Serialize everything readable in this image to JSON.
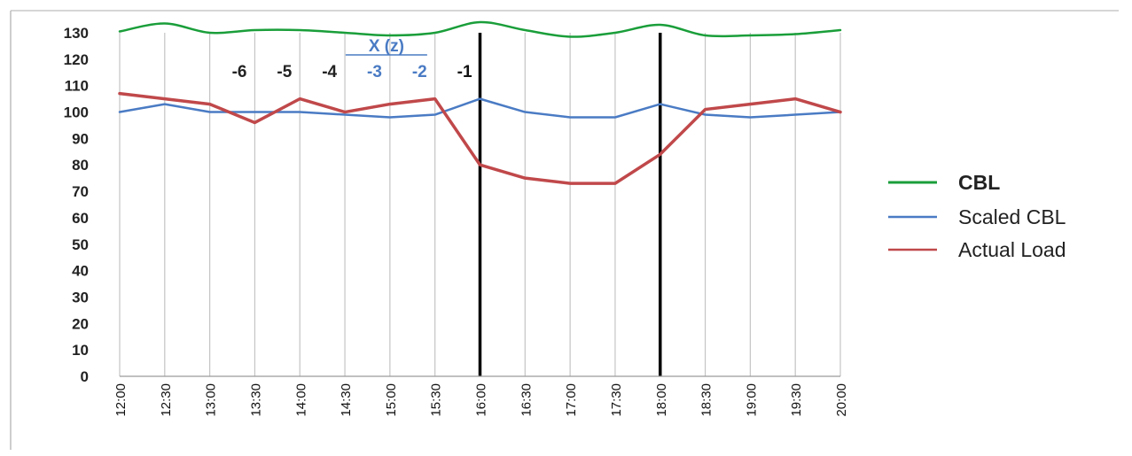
{
  "chart_data": {
    "type": "line",
    "title": "",
    "xlabel": "",
    "ylabel": "",
    "categories": [
      "12:00",
      "12:30",
      "13:00",
      "13:30",
      "14:00",
      "14:30",
      "15:00",
      "15:30",
      "16:00",
      "16:30",
      "17:00",
      "17:30",
      "18:00",
      "18:30",
      "19:00",
      "19:30",
      "20:00"
    ],
    "ylim": [
      0,
      130
    ],
    "yticks": [
      0,
      10,
      20,
      30,
      40,
      50,
      60,
      70,
      80,
      90,
      100,
      110,
      120,
      130
    ],
    "grid": {
      "vertical": true,
      "horizontal": false
    },
    "legend_position": "right",
    "series": [
      {
        "name": "CBL",
        "color": "#1a9e3a",
        "bold_label": true,
        "values": [
          130.5,
          133.5,
          130,
          131,
          131,
          130,
          129,
          130,
          134,
          131,
          128.5,
          130,
          133,
          129,
          129,
          129.5,
          131
        ]
      },
      {
        "name": "Scaled CBL",
        "color": "#4a7bc4",
        "bold_label": false,
        "values": [
          100,
          103,
          100,
          100,
          100,
          99,
          98,
          99,
          105,
          100,
          98,
          98,
          103,
          99,
          98,
          99,
          100
        ]
      },
      {
        "name": "Actual Load",
        "color": "#c0484a",
        "bold_label": false,
        "values": [
          107,
          105,
          103,
          96,
          105,
          100,
          103,
          105,
          80,
          75,
          73,
          73,
          84,
          101,
          103,
          105,
          100
        ]
      }
    ],
    "event_lines": [
      {
        "at": "16:00"
      },
      {
        "at": "18:00"
      }
    ],
    "annotations": {
      "header": {
        "text": "X (z)",
        "color": "#4a7bc4",
        "underline": true
      },
      "offsets": [
        {
          "text": "-6",
          "color": "#222222"
        },
        {
          "text": "-5",
          "color": "#222222"
        },
        {
          "text": "-4",
          "color": "#222222"
        },
        {
          "text": "-3",
          "color": "#4a7bc4"
        },
        {
          "text": "-2",
          "color": "#4a7bc4"
        },
        {
          "text": "-1",
          "color": "#111111"
        }
      ]
    }
  }
}
